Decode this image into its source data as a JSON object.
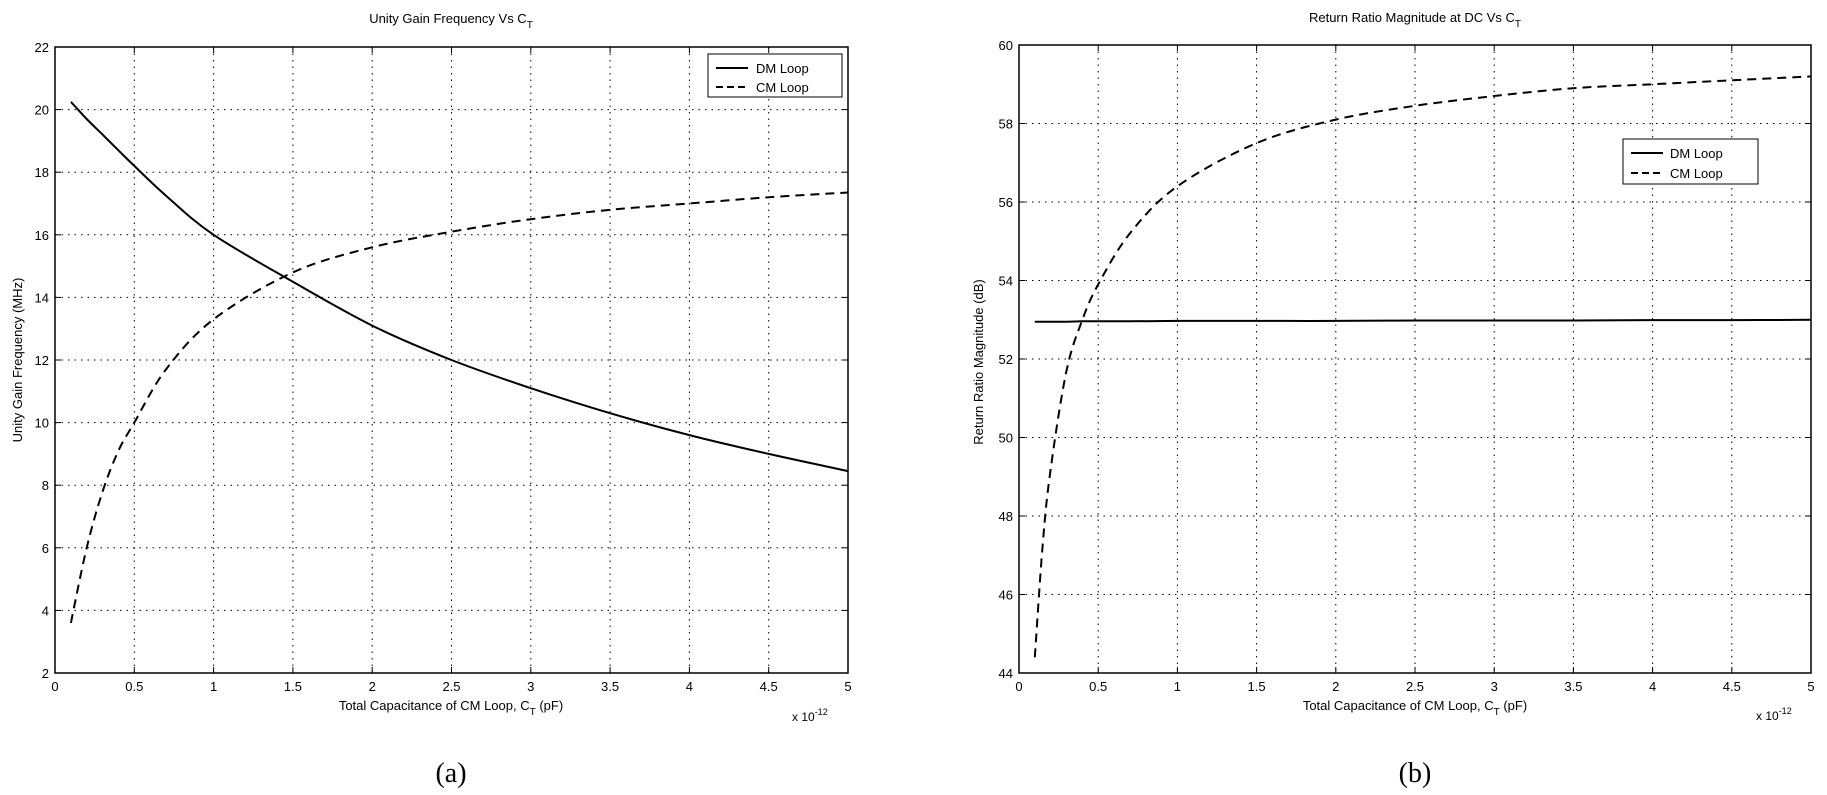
{
  "panels": [
    {
      "caption": "(a)",
      "title_main": "Unity Gain Frequency Vs C",
      "title_sub": "T",
      "ylabel": "Unity Gain Frequency (MHz)",
      "xlabel_main": "Total Capacitance of CM Loop, C",
      "xlabel_sub": "T",
      "xlabel_tail": " (pF)",
      "x_exp_base": "x 10",
      "x_exp_power": "-12",
      "x_ticks": [
        "0",
        "0.5",
        "1",
        "1.5",
        "2",
        "2.5",
        "3",
        "3.5",
        "4",
        "4.5",
        "5"
      ],
      "y_ticks": [
        "2",
        "4",
        "6",
        "8",
        "10",
        "12",
        "14",
        "16",
        "18",
        "20",
        "22"
      ],
      "legend": [
        "DM Loop",
        "CM Loop"
      ]
    },
    {
      "caption": "(b)",
      "title_main": "Return Ratio Magnitude at DC Vs C",
      "title_sub": "T",
      "ylabel": "Return Ratio Magnitude (dB)",
      "xlabel_main": "Total Capacitance of CM Loop, C",
      "xlabel_sub": "T",
      "xlabel_tail": " (pF)",
      "x_exp_base": "x 10",
      "x_exp_power": "-12",
      "x_ticks": [
        "0",
        "0.5",
        "1",
        "1.5",
        "2",
        "2.5",
        "3",
        "3.5",
        "4",
        "4.5",
        "5"
      ],
      "y_ticks": [
        "44",
        "46",
        "48",
        "50",
        "52",
        "54",
        "56",
        "58",
        "60"
      ],
      "legend": [
        "DM Loop",
        "CM Loop"
      ]
    }
  ],
  "chart_data": [
    {
      "type": "line",
      "title": "Unity Gain Frequency Vs C_T",
      "xlabel": "Total Capacitance of CM Loop, C_T (pF)",
      "ylabel": "Unity Gain Frequency (MHz)",
      "x_scale_note": "x 10^-12",
      "xlim": [
        0,
        5
      ],
      "ylim": [
        2,
        22
      ],
      "grid": true,
      "legend_position": "top-right",
      "x": [
        0.1,
        0.2,
        0.3,
        0.4,
        0.5,
        0.7,
        1.0,
        1.5,
        2.0,
        2.5,
        3.0,
        3.5,
        4.0,
        4.5,
        5.0
      ],
      "series": [
        {
          "name": "DM Loop",
          "style": "solid",
          "values": [
            20.25,
            19.7,
            19.2,
            18.7,
            18.2,
            17.25,
            16.0,
            14.5,
            13.1,
            12.0,
            11.1,
            10.3,
            9.6,
            9.0,
            8.45
          ]
        },
        {
          "name": "CM Loop",
          "style": "dashed",
          "values": [
            3.6,
            6.0,
            7.8,
            9.1,
            10.0,
            11.7,
            13.3,
            14.8,
            15.6,
            16.1,
            16.5,
            16.8,
            17.0,
            17.2,
            17.35
          ]
        }
      ]
    },
    {
      "type": "line",
      "title": "Return Ratio Magnitude at DC Vs C_T",
      "xlabel": "Total Capacitance of CM Loop, C_T (pF)",
      "ylabel": "Return Ratio Magnitude (dB)",
      "x_scale_note": "x 10^-12",
      "xlim": [
        0,
        5
      ],
      "ylim": [
        44,
        60
      ],
      "grid": true,
      "legend_position": "upper-right",
      "x": [
        0.1,
        0.15,
        0.2,
        0.3,
        0.4,
        0.5,
        0.7,
        1.0,
        1.5,
        2.0,
        2.5,
        3.0,
        3.5,
        4.0,
        4.5,
        5.0
      ],
      "series": [
        {
          "name": "DM Loop",
          "style": "solid",
          "values": [
            52.95,
            52.95,
            52.95,
            52.95,
            52.96,
            52.96,
            52.96,
            52.97,
            52.97,
            52.97,
            52.98,
            52.98,
            52.98,
            52.99,
            52.99,
            53.0
          ]
        },
        {
          "name": "CM Loop",
          "style": "dashed",
          "values": [
            44.4,
            47.3,
            49.2,
            51.7,
            53.0,
            53.9,
            55.2,
            56.4,
            57.5,
            58.1,
            58.45,
            58.7,
            58.9,
            59.0,
            59.1,
            59.2
          ]
        }
      ]
    }
  ]
}
